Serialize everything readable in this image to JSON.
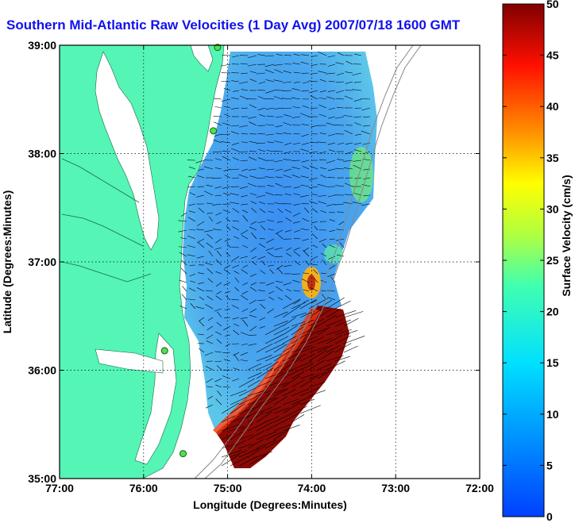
{
  "title": "Southern Mid-Atlantic Raw Velocities (1 Day Avg) 2007/07/18 1600 GMT",
  "map": {
    "x_axis_label": "Longitude (Degrees:Minutes)",
    "y_axis_label": "Latitude (Degrees:Minutes)",
    "x_ticks": [
      "77:00",
      "76:00",
      "75:00",
      "74:00",
      "73:00",
      "72:00"
    ],
    "y_ticks": [
      "39:00",
      "38:00",
      "37:00",
      "36:00",
      "35:00"
    ],
    "lon_range": [
      -77,
      -72
    ],
    "lat_range": [
      35,
      39
    ],
    "land_color": "#55f5b5",
    "stations": [
      {
        "lon": -75.12,
        "lat": 38.98
      },
      {
        "lon": -75.17,
        "lat": 38.21
      },
      {
        "lon": -75.75,
        "lat": 36.18
      },
      {
        "lon": -75.53,
        "lat": 35.23
      }
    ]
  },
  "colorbar": {
    "label": "Surface Velocity (cm/s)",
    "min": 0,
    "max": 50,
    "ticks": [
      "0",
      "5",
      "10",
      "15",
      "20",
      "25",
      "30",
      "35",
      "40",
      "45",
      "50"
    ],
    "colormap": "jet"
  }
}
